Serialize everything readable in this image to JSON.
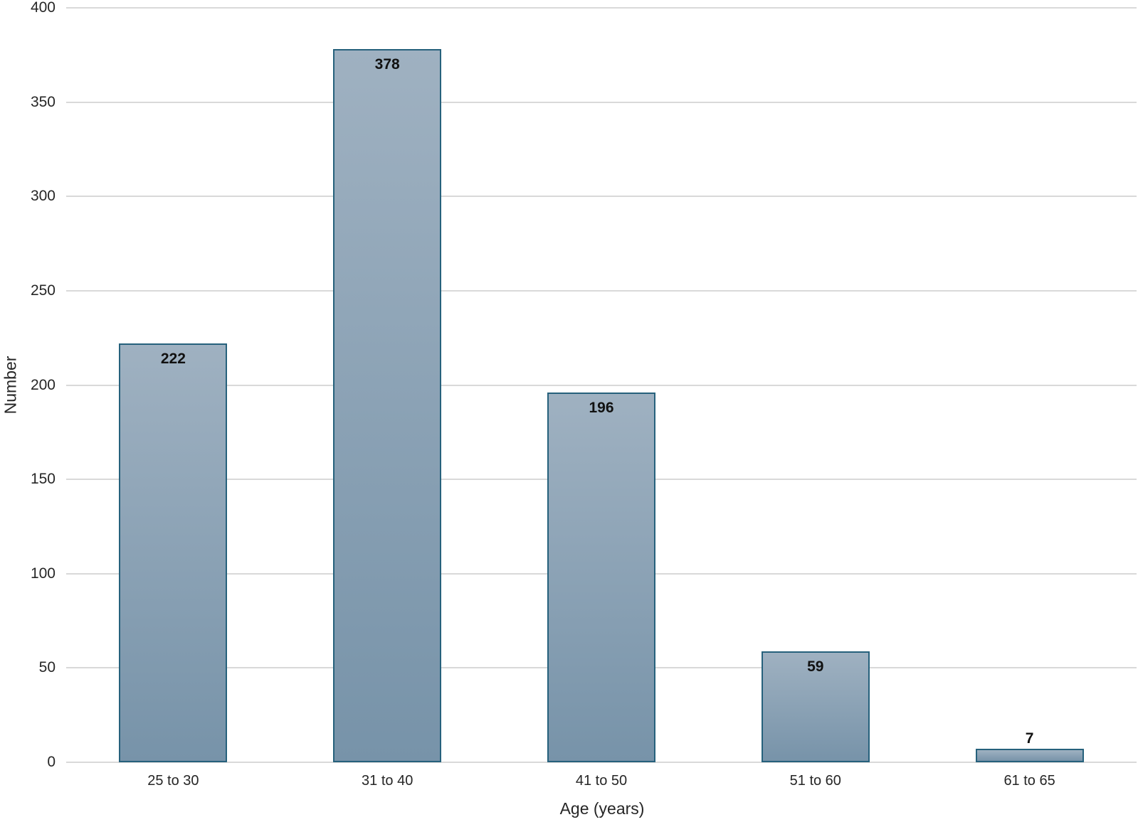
{
  "chart_data": {
    "type": "bar",
    "categories": [
      "25 to 30",
      "31 to 40",
      "41 to 50",
      "51 to 60",
      "61 to 65"
    ],
    "values": [
      222,
      378,
      196,
      59,
      7
    ],
    "title": "",
    "xlabel": "Age (years)",
    "ylabel": "Number",
    "ylim": [
      0,
      400
    ],
    "yticks": [
      0,
      50,
      100,
      150,
      200,
      250,
      300,
      350,
      400
    ],
    "grid": "horizontal",
    "legend": "none",
    "data_label_style": "bold, inside end (outside end when bar too short)",
    "colors": {
      "bar_fill_top": "#9FB1C1",
      "bar_fill_bottom": "#7793A9",
      "bar_border": "#26617C",
      "gridline": "#D9D9D9",
      "tick_text": "#262626",
      "data_label_text": "#111111",
      "background": "#FFFFFF"
    }
  }
}
